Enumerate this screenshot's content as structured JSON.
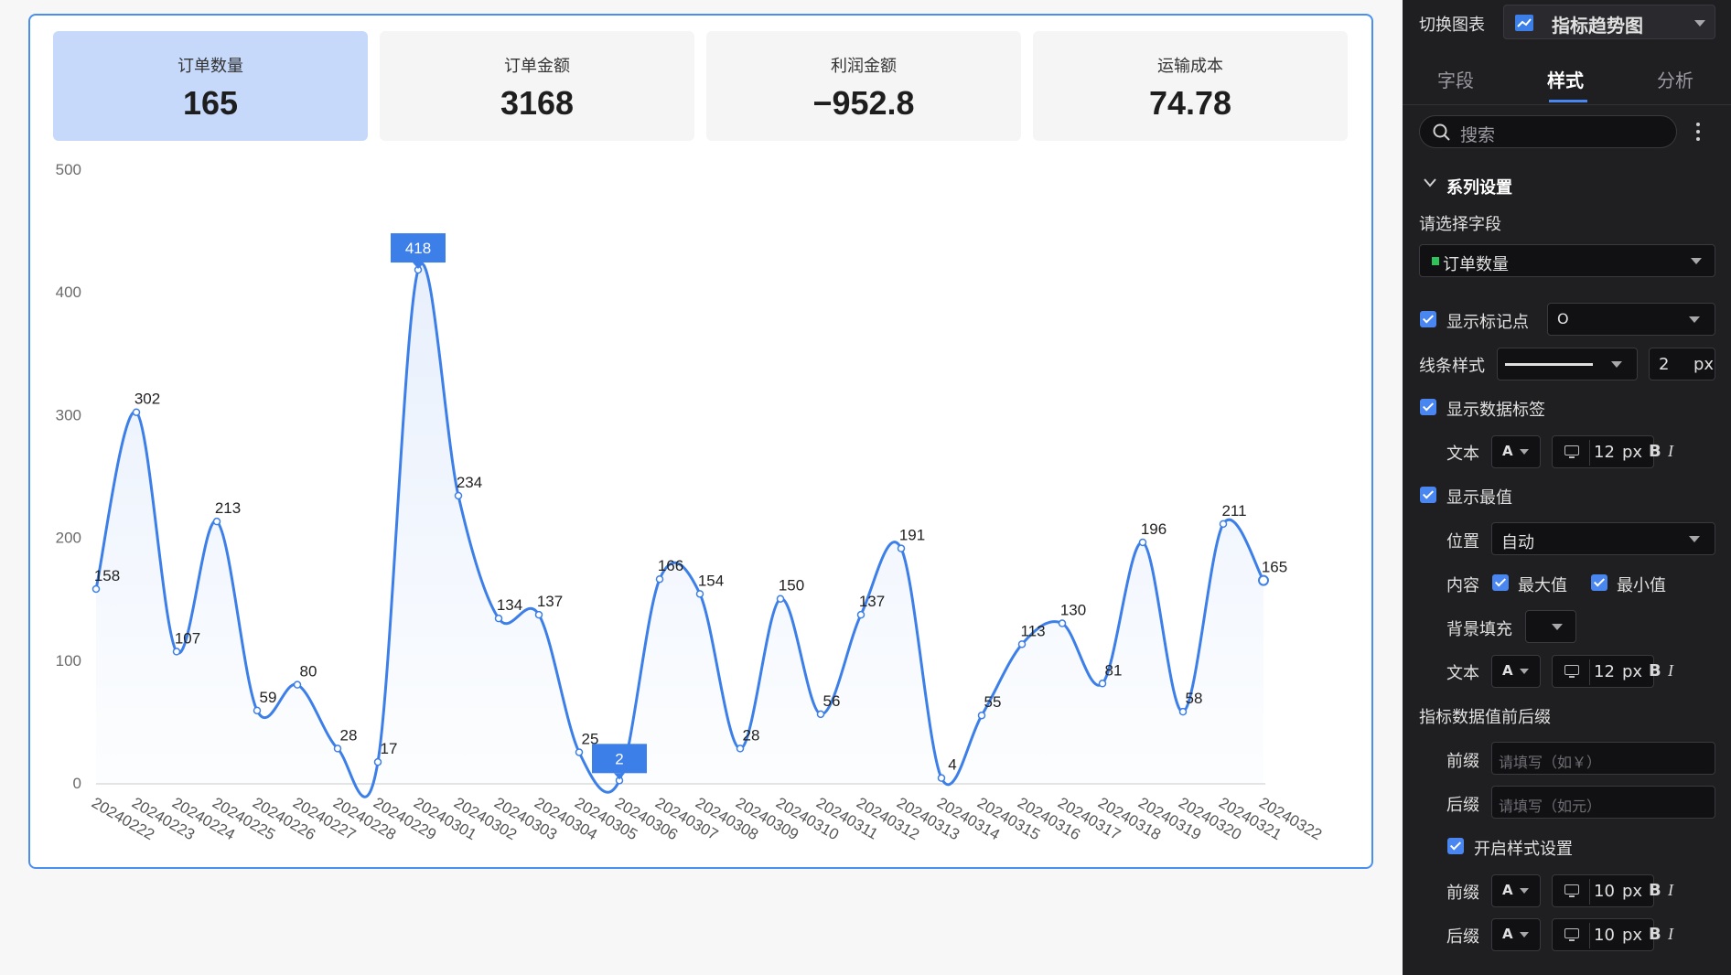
{
  "kpis": [
    {
      "label": "订单数量",
      "value": "165"
    },
    {
      "label": "订单金额",
      "value": "3168"
    },
    {
      "label": "利润金额",
      "value": "−952.8"
    },
    {
      "label": "运输成本",
      "value": "74.78"
    }
  ],
  "chart_data": {
    "type": "line",
    "title": "",
    "xlabel": "",
    "ylabel": "",
    "ylim": [
      0,
      500
    ],
    "yticks": [
      "0",
      "100",
      "200",
      "300",
      "400",
      "500"
    ],
    "smooth": true,
    "area_fill": true,
    "show_markers": true,
    "show_data_labels": true,
    "highlight_extremes": {
      "max": "418",
      "min": "2"
    },
    "color": "#3d7fe8",
    "categories": [
      "20240222",
      "20240223",
      "20240224",
      "20240225",
      "20240226",
      "20240227",
      "20240228",
      "20240229",
      "20240301",
      "20240302",
      "20240303",
      "20240304",
      "20240305",
      "20240306",
      "20240307",
      "20240308",
      "20240309",
      "20240310",
      "20240311",
      "20240312",
      "20240313",
      "20240314",
      "20240315",
      "20240316",
      "20240317",
      "20240318",
      "20240319",
      "20240320",
      "20240321",
      "20240322"
    ],
    "series": [
      {
        "values": [
          158,
          302,
          107,
          213,
          59,
          80,
          28,
          17,
          418,
          234,
          134,
          137,
          25,
          2,
          166,
          154,
          28,
          150,
          56,
          137,
          191,
          4,
          55,
          113,
          130,
          81,
          196,
          58,
          211,
          165
        ]
      }
    ]
  },
  "panel": {
    "chart_switch_label": "切换图表",
    "chart_type": "指标趋势图",
    "tabs": [
      "字段",
      "样式",
      "分析"
    ],
    "active_tab": "样式",
    "search_placeholder": "搜索",
    "section_title": "系列设置",
    "select_field_label": "请选择字段",
    "selected_field": "订单数量",
    "field_color": "#2fc25b",
    "show_markers_label": "显示标记点",
    "marker_shape": "O",
    "line_style_label": "线条样式",
    "line_width": "2",
    "px": "px",
    "show_data_labels_label": "显示数据标签",
    "text_label": "文本",
    "font_a": "A",
    "font_size_12": "12",
    "bold": "B",
    "italic": "I",
    "show_extremes_label": "显示最值",
    "position_label": "位置",
    "position_value": "自动",
    "content_label": "内容",
    "max_label": "最大值",
    "min_label": "最小值",
    "bg_fill_label": "背景填充",
    "affix_title": "指标数据值前后缀",
    "prefix_label": "前缀",
    "prefix_placeholder": "请填写（如￥）",
    "suffix_label": "后缀",
    "suffix_placeholder": "请填写（如元）",
    "enable_style_label": "开启样式设置",
    "font_size_10": "10"
  }
}
